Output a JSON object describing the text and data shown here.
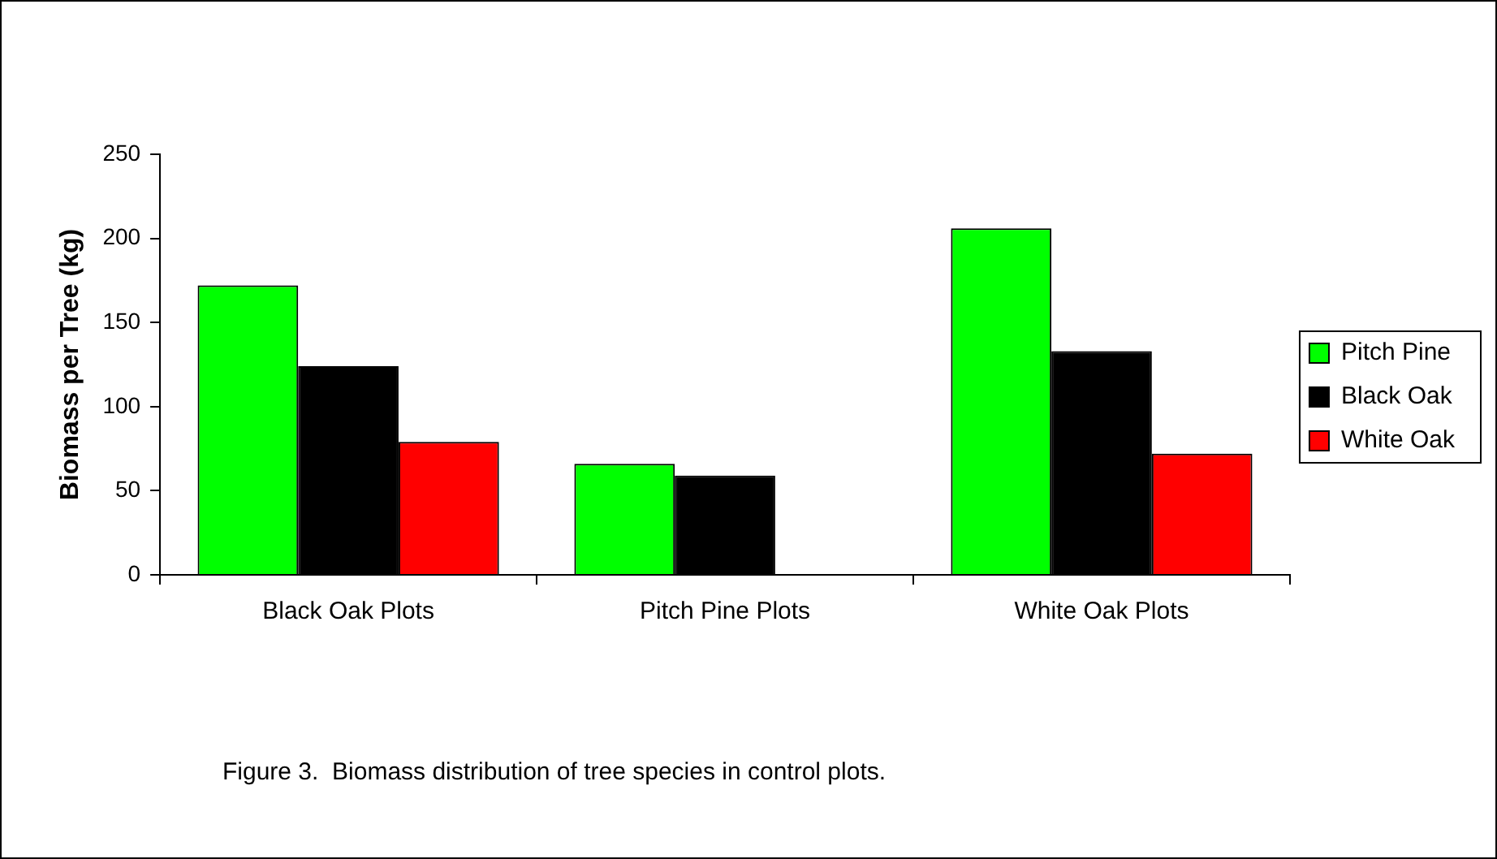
{
  "chart_data": {
    "type": "bar",
    "ylabel": "Biomass per Tree (kg)",
    "categories": [
      "Black Oak Plots",
      "Pitch Pine Plots",
      "White Oak Plots"
    ],
    "series": [
      {
        "name": "Pitch Pine",
        "color": "#00ff00",
        "values": [
          172,
          66,
          206
        ]
      },
      {
        "name": "Black Oak",
        "color": "#000000",
        "values": [
          124,
          59,
          133
        ]
      },
      {
        "name": "White Oak",
        "color": "#ff0000",
        "values": [
          79,
          null,
          72
        ]
      }
    ],
    "ylim": [
      0,
      250
    ],
    "yticks": [
      0,
      50,
      100,
      150,
      200,
      250
    ],
    "grid": false,
    "legend": "right",
    "annotations": [
      "Figure 3.  Biomass distribution of tree species in control plots."
    ]
  }
}
